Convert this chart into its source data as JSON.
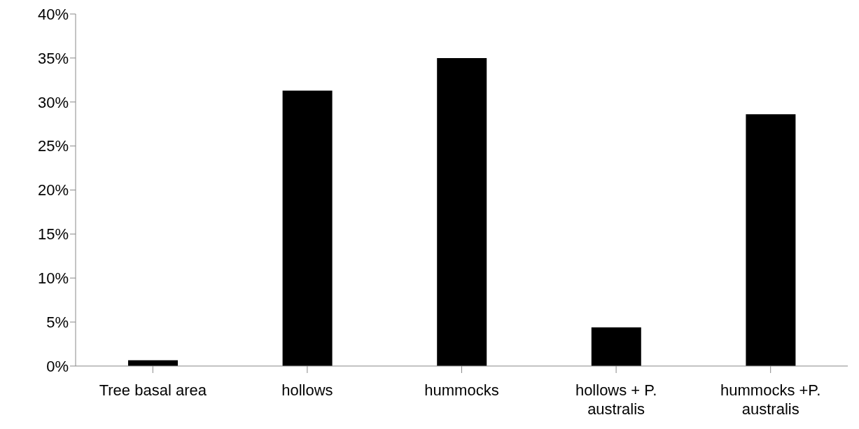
{
  "chart_data": {
    "type": "bar",
    "categories": [
      "Tree basal area",
      "hollows",
      "hummocks",
      "hollows + P. australis",
      "hummocks +P. australis"
    ],
    "values": [
      0.65,
      31.3,
      35.0,
      4.4,
      28.6
    ],
    "color": "#000000",
    "ylim": [
      0,
      40
    ],
    "yticks": [
      {
        "value": 0,
        "label": "0%"
      },
      {
        "value": 5,
        "label": "5%"
      },
      {
        "value": 10,
        "label": "10%"
      },
      {
        "value": 15,
        "label": "15%"
      },
      {
        "value": 20,
        "label": "20%"
      },
      {
        "value": 25,
        "label": "25%"
      },
      {
        "value": 30,
        "label": "30%"
      },
      {
        "value": 35,
        "label": "35%"
      },
      {
        "value": 40,
        "label": "40%"
      }
    ],
    "grid": false,
    "legend": false
  }
}
